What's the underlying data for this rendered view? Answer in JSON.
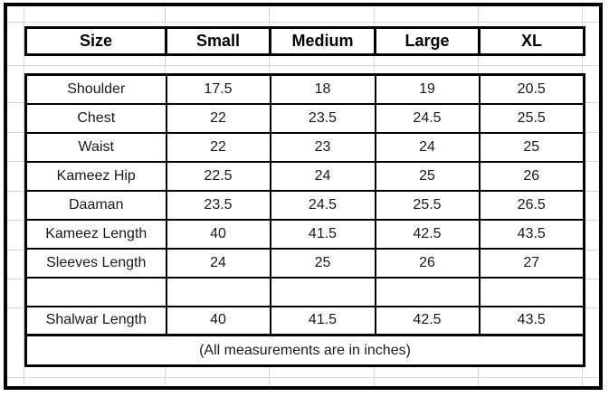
{
  "size_chart": {
    "columns": [
      "Size",
      "Small",
      "Medium",
      "Large",
      "XL"
    ],
    "rows": [
      {
        "label": "Shoulder",
        "values": [
          "17.5",
          "18",
          "19",
          "20.5"
        ]
      },
      {
        "label": "Chest",
        "values": [
          "22",
          "23.5",
          "24.5",
          "25.5"
        ]
      },
      {
        "label": "Waist",
        "values": [
          "22",
          "23",
          "24",
          "25"
        ]
      },
      {
        "label": "Kameez Hip",
        "values": [
          "22.5",
          "24",
          "25",
          "26"
        ]
      },
      {
        "label": "Daaman",
        "values": [
          "23.5",
          "24.5",
          "25.5",
          "26.5"
        ]
      },
      {
        "label": "Kameez Length",
        "values": [
          "40",
          "41.5",
          "42.5",
          "43.5"
        ]
      },
      {
        "label": "Sleeves Length",
        "values": [
          "24",
          "25",
          "26",
          "27"
        ]
      },
      {
        "label": "",
        "values": [
          "",
          "",
          "",
          ""
        ]
      },
      {
        "label": "Shalwar Length",
        "values": [
          "40",
          "41.5",
          "42.5",
          "43.5"
        ]
      }
    ],
    "footer": "(All measurements are in inches)"
  },
  "colors": {
    "table_border": "#000000",
    "frame_border": "#000000",
    "gridline": "#d8d8d8",
    "background": "#ffffff",
    "text": "#1a1a1a"
  }
}
